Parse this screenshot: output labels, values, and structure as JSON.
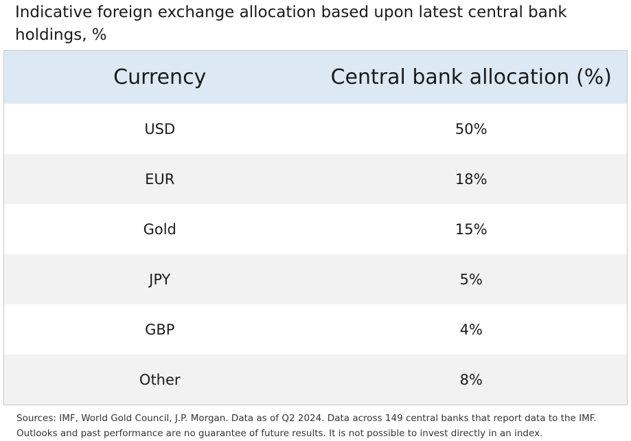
{
  "header": {
    "title": "Indicative foreign exchange allocation based upon latest central bank holdings, %"
  },
  "table": {
    "columns": [
      "Currency",
      "Central bank allocation (%)"
    ],
    "rows": [
      [
        "USD",
        "50%"
      ],
      [
        "EUR",
        "18%"
      ],
      [
        "Gold",
        "15%"
      ],
      [
        "JPY",
        "5%"
      ],
      [
        "GBP",
        "4%"
      ],
      [
        "Other",
        "8%"
      ]
    ]
  },
  "footer": {
    "lines": [
      "Sources: IMF, World Gold Council, J.P. Morgan. Data as of Q2 2024. Data across 149 central banks that report data to the IMF.",
      "Outlooks and past performance are no guarantee of future results. It is not possible to invest directly in an index."
    ]
  }
}
